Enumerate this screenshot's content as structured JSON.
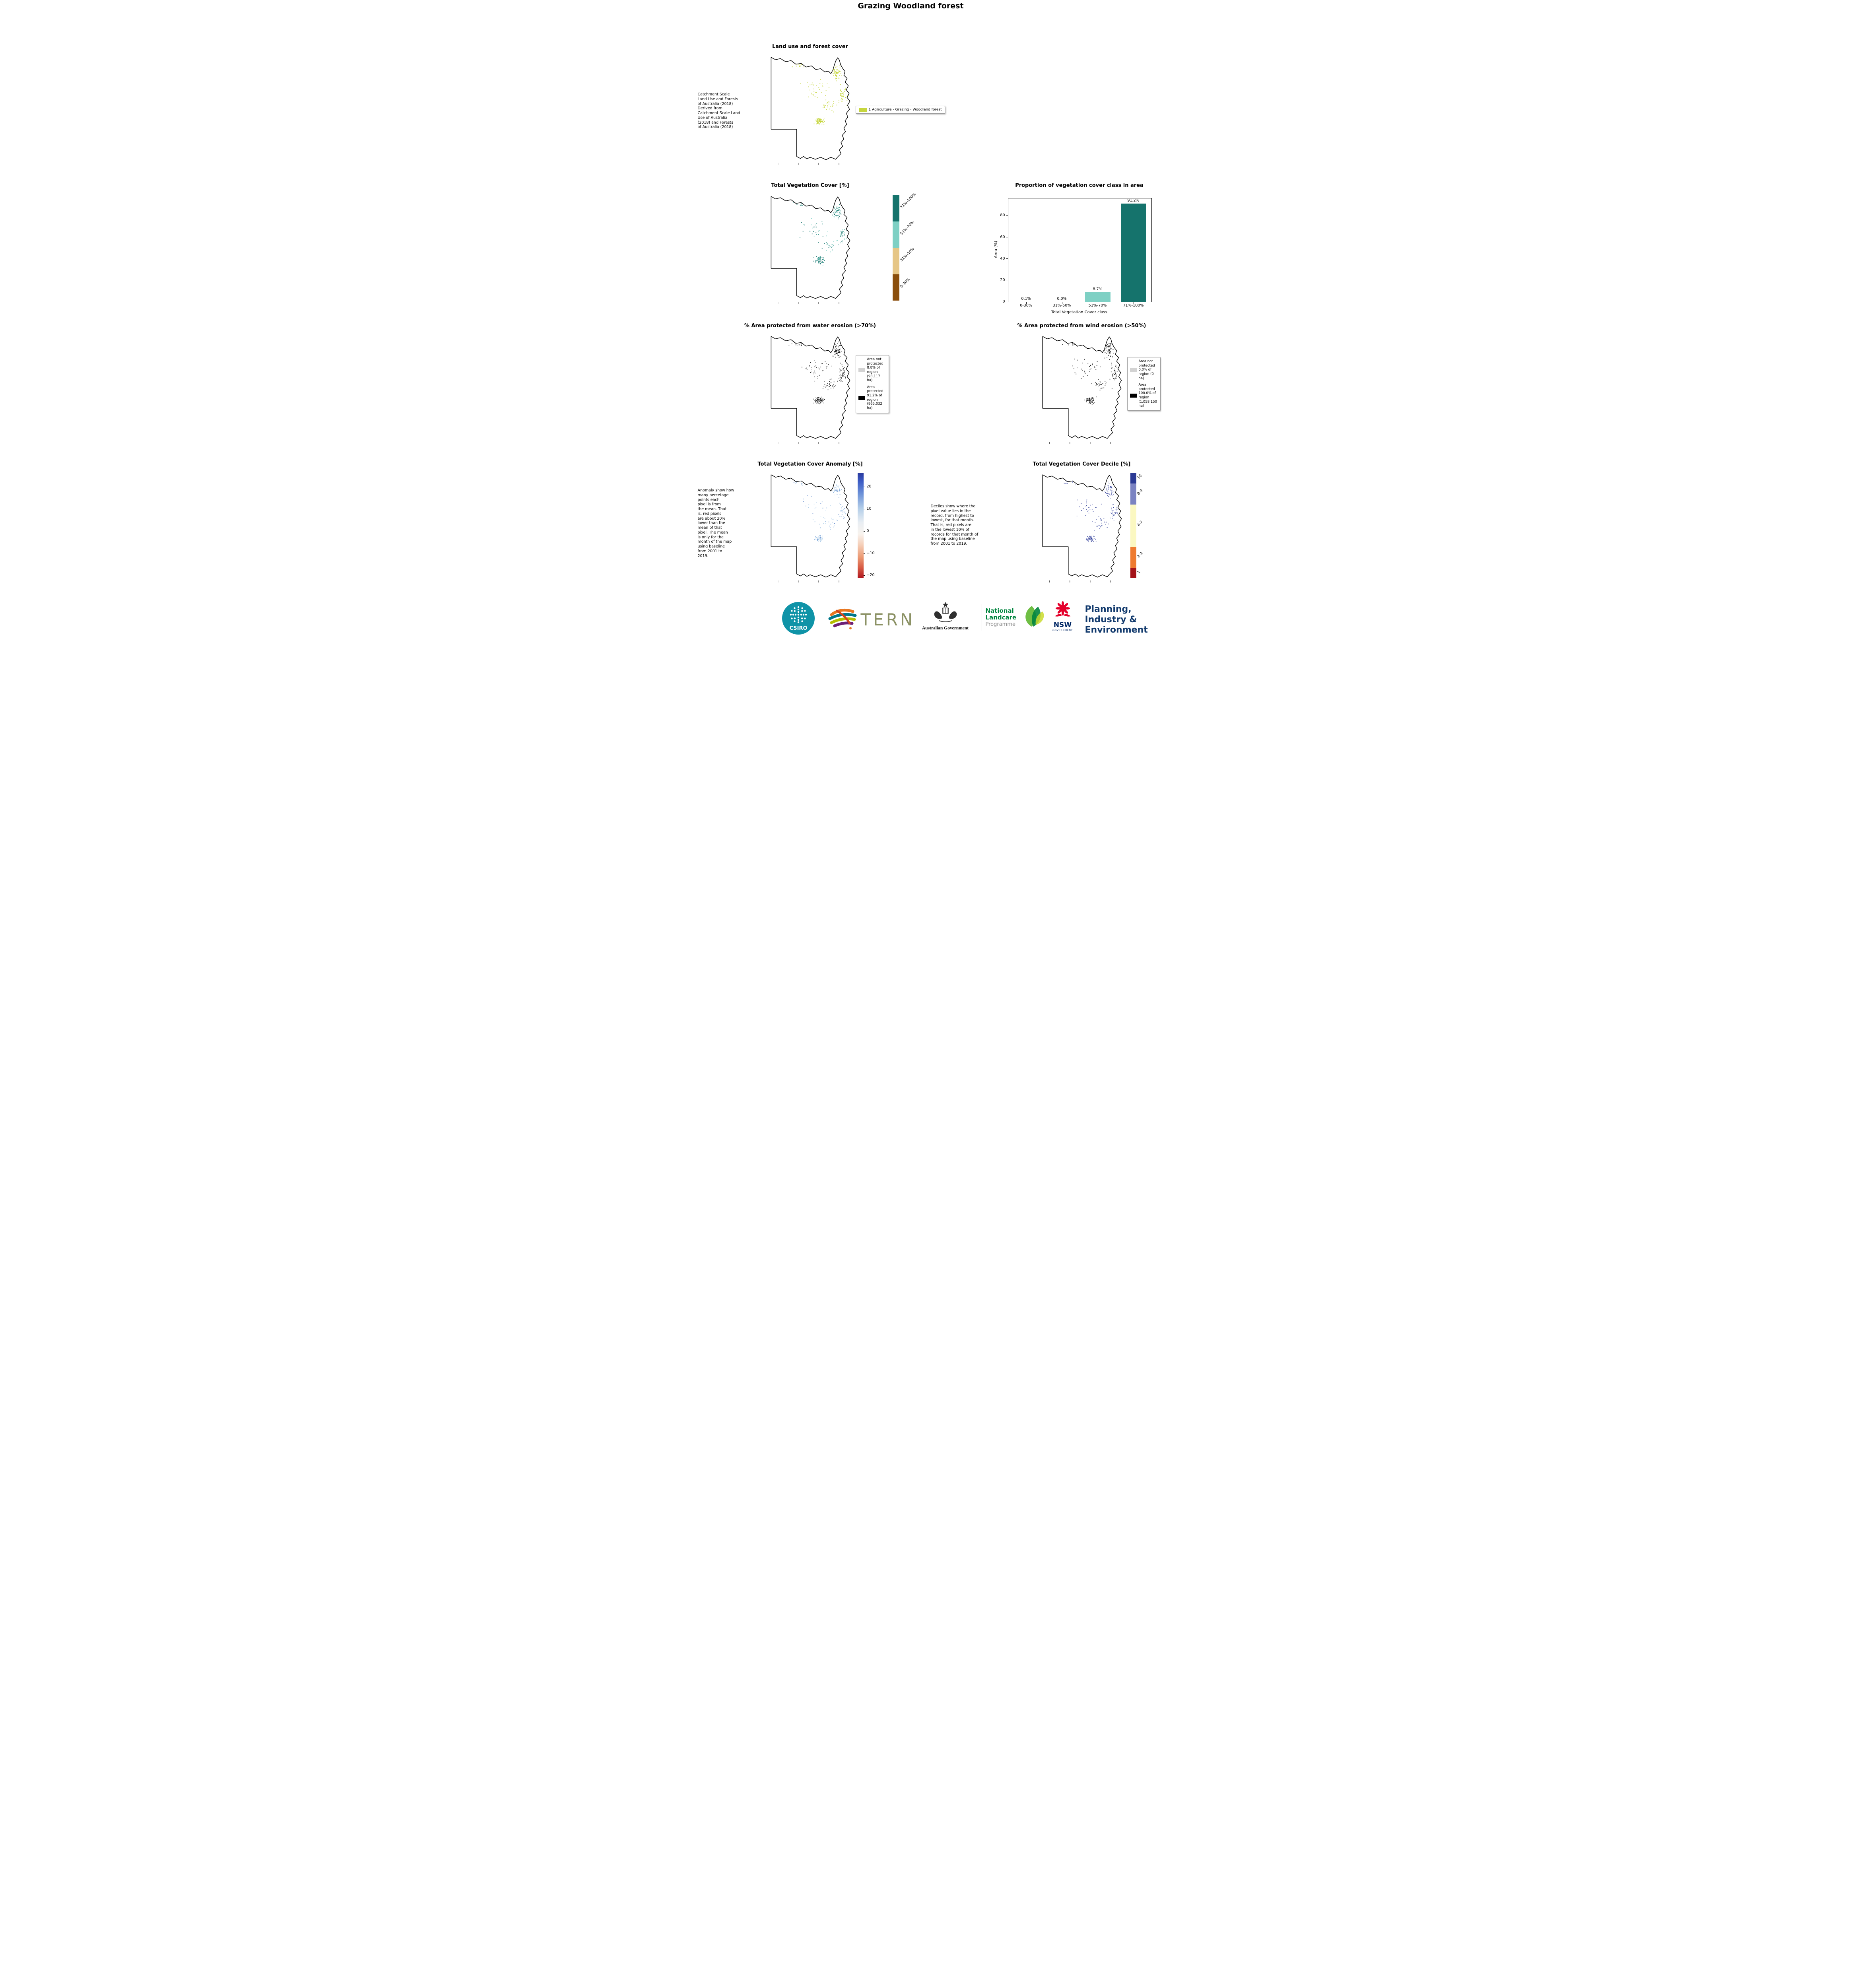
{
  "title": "Grazing Woodland forest",
  "panels": {
    "land_use": {
      "title": "Land use and forest cover",
      "note": " Catchment Scale\nLand Use and Forests\nof Australia (2018)\nDerived from\nCatchment Scale Land\nUse of Australia\n(2018) and Forests\nof Australia (2018)",
      "legend_label": "1 Agriculture - Grazing - Woodland forest",
      "legend_color": "#c6d63d"
    },
    "veg_cover": {
      "title": "Total Vegetation Cover [%]",
      "colorbar": [
        {
          "label": "71%-100%",
          "color": "#15736c"
        },
        {
          "label": "51%-70%",
          "color": "#7ed0c4"
        },
        {
          "label": "31%-50%",
          "color": "#e6c686"
        },
        {
          "label": "0-30%",
          "color": "#8a4e0c"
        }
      ]
    },
    "proportion": {
      "title": "Proportion of vegetation cover class in area",
      "ylabel": "Area (%)",
      "xlabel": "Total Vegetation Cover class",
      "yticks": [
        0,
        20,
        40,
        60,
        80
      ],
      "bar_labels": [
        "0.1%",
        "0.0%",
        "8.7%",
        "91.2%"
      ],
      "bar_colors": [
        "#8a4e0c",
        "#e6c686",
        "#7ed0c4",
        "#15736c"
      ]
    },
    "water_erosion": {
      "title": "% Area protected from water erosion (>70%)",
      "legend": [
        {
          "label": "Area not\nprotected\n8.8% of\nregion\n(93,117\nha)",
          "color": "#d3d3d3"
        },
        {
          "label": "Area\nprotected\n91.2% of\nregion\n(965,032\nha)",
          "color": "#000000"
        }
      ]
    },
    "wind_erosion": {
      "title": "% Area protected from wind erosion (>50%)",
      "legend": [
        {
          "label": "Area not\nprotected\n0.0% of\nregion (0\nha)",
          "color": "#d3d3d3"
        },
        {
          "label": "Area\nprotected\n100.0% of\nregion\n(1,058,150\nha)",
          "color": "#000000"
        }
      ]
    },
    "anomaly": {
      "title": "Total Vegetation Cover Anomaly [%]",
      "note": "Anomaly show how\nmany percetage\npoints each\npixel is from\nthe mean. That\nis, red pixels\nare about 20%\nlower than the\nmean of that\npixel. The mean\nis only for the\nmonth of the map\nusing baseline\nfrom 2001 to\n2019.",
      "ticks": [
        "20",
        "10",
        "0",
        "−10",
        "−20"
      ]
    },
    "decile": {
      "title": "Total Vegetation Cover Decile [%]",
      "note": "Deciles show where the\npixel value lies in the\nrecord, from highest to\nlowest, for that month.\nThat is, red pixels are\nin the lowest 10% of\nrecords for that month of\nthe map using baseline\nfrom 2001 to 2019.",
      "colorbar": [
        {
          "label": "10",
          "color": "#2b3a94"
        },
        {
          "label": "8-9",
          "color": "#7b83c2"
        },
        {
          "label": "4-7",
          "color": "#fbf8c2"
        },
        {
          "label": "2-3",
          "color": "#ee7b30"
        },
        {
          "label": "1",
          "color": "#a41319"
        }
      ]
    }
  },
  "chart_data": {
    "type": "bar",
    "title": "Proportion of vegetation cover class in area",
    "categories": [
      "0-30%",
      "31%-50%",
      "51%-70%",
      "71%-100%"
    ],
    "values": [
      0.1,
      0.0,
      8.7,
      91.2
    ],
    "xlabel": "Total Vegetation Cover class",
    "ylabel": "Area (%)",
    "ylim": [
      0,
      96
    ],
    "legend_position": "none",
    "grid": false
  },
  "footer": {
    "csiro": "CSIRO",
    "tern": "TERN",
    "aus_gov": "Australian Government",
    "landcare": [
      "National",
      "Landcare",
      "Programme"
    ],
    "nsw": "NSW",
    "nsw_sub": "GOVERNMENT",
    "dpie": [
      "Planning,",
      "Industry &",
      "Environment"
    ]
  }
}
